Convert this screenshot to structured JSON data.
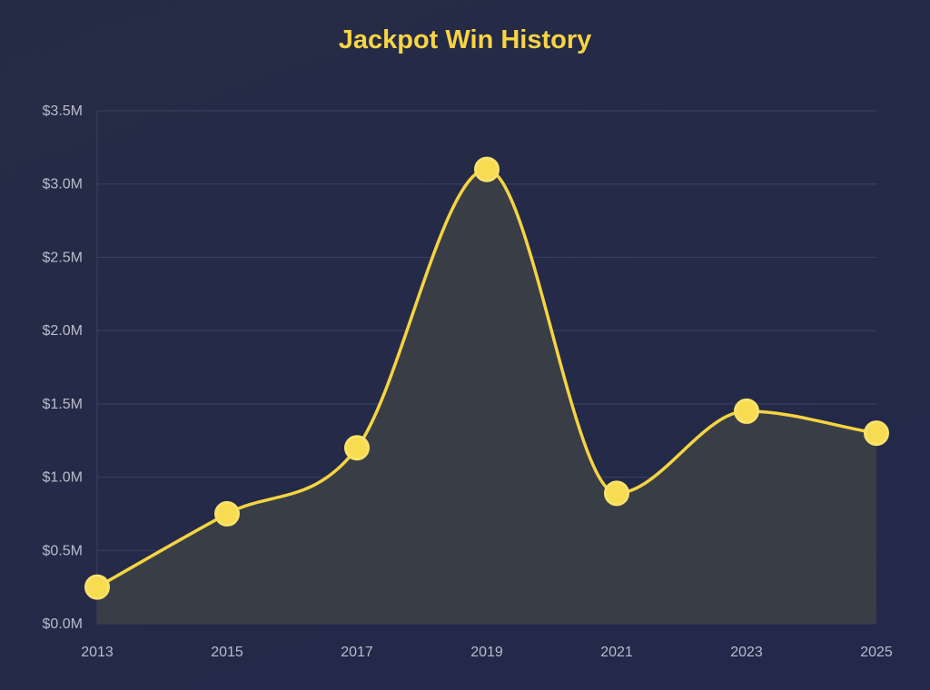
{
  "chart_data": {
    "type": "area",
    "title": "Jackpot Win History",
    "xlabel": "",
    "ylabel": "",
    "x": [
      "2013",
      "2015",
      "2017",
      "2019",
      "2021",
      "2023",
      "2025"
    ],
    "series": [
      {
        "values": [
          250000,
          750000,
          1200000,
          3100000,
          890000,
          1450000,
          1300000
        ]
      }
    ],
    "ylim": [
      0,
      3500000
    ],
    "yticks": [
      0,
      500000,
      1000000,
      1500000,
      2000000,
      2500000,
      3000000,
      3500000
    ],
    "ytick_labels": [
      "$0.0M",
      "$0.5M",
      "$1.0M",
      "$1.5M",
      "$2.0M",
      "$2.5M",
      "$3.0M",
      "$3.5M"
    ],
    "grid": true,
    "legend": "none",
    "colors": {
      "line": "#f5d442",
      "marker_fill": "#f7dc52",
      "marker_stroke": "#f9e26a",
      "area_fill": "#3b3f47",
      "grid": "#3b4160",
      "title": "#f7d444",
      "tick_text": "#b8bccb"
    }
  }
}
